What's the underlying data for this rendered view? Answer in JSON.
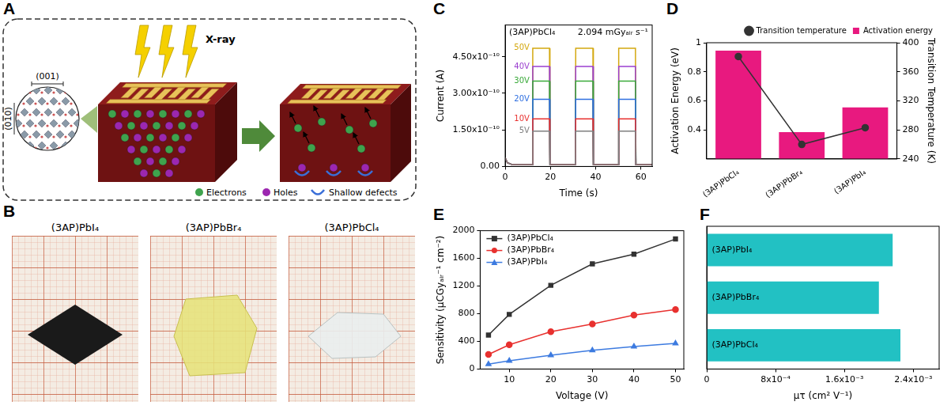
{
  "diagram": {
    "panel": "A",
    "structure_labels": [
      "(001)",
      "(010)"
    ],
    "beam_label": "X-ray",
    "key_labels": [
      "Electrons",
      "Holes",
      "Shallow defects"
    ]
  },
  "photos": {
    "panel": "B",
    "labels": [
      "(3AP)PbI₄",
      "(3AP)PbBr₄",
      "(3AP)PbCl₄"
    ]
  },
  "chart_data": [
    {
      "panel": "C",
      "type": "line",
      "annotations": [
        "(3AP)PbCl₄",
        "2.094 mGyₐᵢᵣ s⁻¹"
      ],
      "x_label": "Time (s)",
      "y_label": "Current (A)",
      "x": [
        0,
        1,
        3,
        12,
        12.2,
        19.6,
        19.8,
        31,
        31.2,
        38.8,
        39,
        50,
        50.2,
        57.6,
        57.8,
        65
      ],
      "series": [
        {
          "name": "5V",
          "color": "#7f7f7f",
          "values": [
            3.5e-11,
            1.5e-11,
            8e-12,
            8e-12,
            1.45e-10,
            1.45e-10,
            8e-12,
            8e-12,
            1.45e-10,
            1.45e-10,
            8e-12,
            8e-12,
            1.45e-10,
            1.45e-10,
            8e-12,
            8e-12
          ]
        },
        {
          "name": "10V",
          "color": "#e8312f",
          "values": [
            3.5e-11,
            1.5e-11,
            8e-12,
            8e-12,
            1.95e-10,
            1.95e-10,
            8e-12,
            8e-12,
            1.95e-10,
            1.95e-10,
            8e-12,
            8e-12,
            1.95e-10,
            1.95e-10,
            8e-12,
            8e-12
          ]
        },
        {
          "name": "20V",
          "color": "#2f6fe0",
          "values": [
            3.5e-11,
            1.5e-11,
            8e-12,
            8e-12,
            2.75e-10,
            2.75e-10,
            8e-12,
            8e-12,
            2.75e-10,
            2.75e-10,
            8e-12,
            8e-12,
            2.75e-10,
            2.75e-10,
            8e-12,
            8e-12
          ]
        },
        {
          "name": "30V",
          "color": "#3aaa3a",
          "values": [
            3.5e-11,
            1.5e-11,
            8e-12,
            8e-12,
            3.5e-10,
            3.5e-10,
            8e-12,
            8e-12,
            3.5e-10,
            3.5e-10,
            8e-12,
            8e-12,
            3.5e-10,
            3.5e-10,
            8e-12,
            8e-12
          ]
        },
        {
          "name": "40V",
          "color": "#9b3fcf",
          "values": [
            3.5e-11,
            1.5e-11,
            8e-12,
            8e-12,
            4.1e-10,
            4.1e-10,
            8e-12,
            8e-12,
            4.1e-10,
            4.1e-10,
            8e-12,
            8e-12,
            4.1e-10,
            4.1e-10,
            8e-12,
            8e-12
          ]
        },
        {
          "name": "50V",
          "color": "#d4a80f",
          "values": [
            3.5e-11,
            1.5e-11,
            8e-12,
            8e-12,
            4.85e-10,
            4.85e-10,
            8e-12,
            8e-12,
            4.85e-10,
            4.85e-10,
            8e-12,
            8e-12,
            4.85e-10,
            4.85e-10,
            8e-12,
            8e-12
          ]
        }
      ],
      "xlim": [
        0,
        65
      ],
      "xticks": [
        0,
        20,
        40,
        60
      ],
      "ylim": [
        0,
        5.8e-10
      ],
      "yticks": [
        {
          "value": 0,
          "label": "0.00"
        },
        {
          "value": 1.5e-10,
          "label": "1.50x10⁻¹⁰"
        },
        {
          "value": 3e-10,
          "label": "3.00x10⁻¹⁰"
        },
        {
          "value": 4.5e-10,
          "label": "4.50x10⁻¹⁰"
        }
      ],
      "grid": false
    },
    {
      "panel": "D",
      "type": "bar",
      "categories": [
        "(3AP)PbCl₄",
        "(3AP)PbBr₄",
        "(3AP)PbI₄"
      ],
      "series": [
        {
          "name": "Activation energy",
          "type": "bar",
          "color": "#e8197f",
          "values": [
            0.945,
            0.385,
            0.555
          ]
        },
        {
          "name": "Transition temperature",
          "type": "line",
          "axis": "y2",
          "color": "#333333",
          "marker": "circle",
          "values": [
            381,
            260,
            283
          ]
        }
      ],
      "y_label": "Activation Energy (eV)",
      "y2_label": "Transition Temperature (K)",
      "ylim": [
        0.2,
        1
      ],
      "yticks": [
        0.4,
        0.6,
        0.8,
        1
      ],
      "y2lim": [
        240,
        400
      ],
      "y2ticks": [
        240,
        280,
        320,
        360,
        400
      ],
      "legend": "top",
      "grid": false
    },
    {
      "panel": "E",
      "type": "line",
      "x": [
        5,
        10,
        20,
        30,
        40,
        50
      ],
      "series": [
        {
          "name": "(3AP)PbCl₄",
          "color": "#333333",
          "marker": "square",
          "values": [
            490,
            790,
            1210,
            1520,
            1660,
            1880
          ]
        },
        {
          "name": "(3AP)PbBr₄",
          "color": "#e8312f",
          "marker": "circle",
          "values": [
            210,
            350,
            540,
            650,
            780,
            860
          ]
        },
        {
          "name": "(3AP)PbI₄",
          "color": "#3d7be0",
          "marker": "triangle",
          "values": [
            70,
            120,
            200,
            270,
            325,
            370
          ]
        }
      ],
      "x_label": "Voltage (V)",
      "y_label": "Sensitivity (μCGyₐᵢᵣ⁻¹ cm⁻²)",
      "xlim": [
        3,
        52
      ],
      "xticks": [
        10,
        20,
        30,
        40,
        50
      ],
      "ylim": [
        0,
        2000
      ],
      "yticks": [
        0,
        400,
        800,
        1200,
        1600,
        2000
      ],
      "legend": "upper left",
      "grid": false
    },
    {
      "panel": "F",
      "type": "bar",
      "orientation": "horizontal",
      "categories": [
        "(3AP)PbI₄",
        "(3AP)PbBr₄",
        "(3AP)PbCl₄"
      ],
      "values": [
        0.00216,
        0.002,
        0.00225
      ],
      "color": "#22c1c3",
      "x_label": "μτ (cm² V⁻¹)",
      "xlim": [
        0,
        0.0027
      ],
      "xticks": [
        0,
        {
          "value": 0.0008,
          "label": "8x10⁻⁴"
        },
        {
          "value": 0.0016,
          "label": "1.6x10⁻³"
        },
        {
          "value": 0.0024,
          "label": "2.4x10⁻³"
        }
      ],
      "tick_labels": "x",
      "grid": false
    }
  ]
}
